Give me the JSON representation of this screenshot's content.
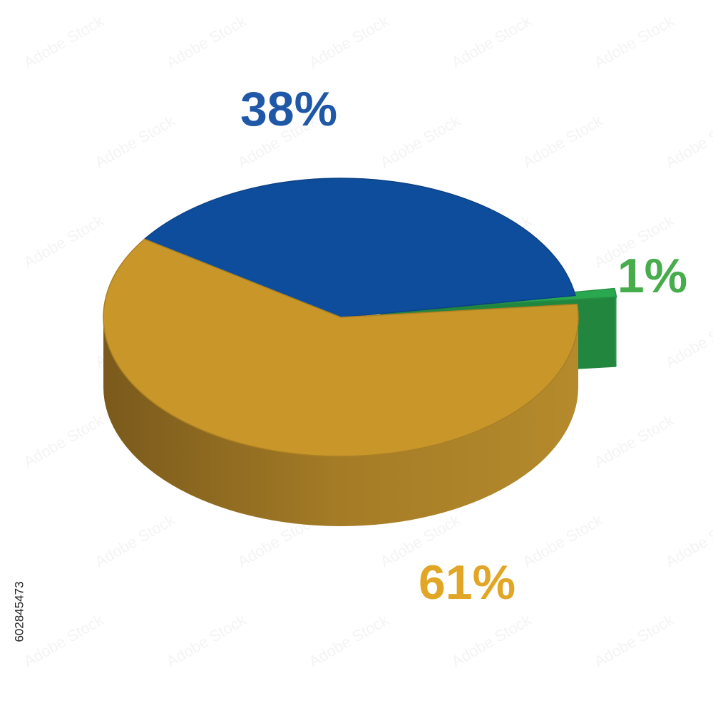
{
  "chart_data": {
    "type": "pie",
    "three_d": true,
    "categories": [
      null,
      null,
      null
    ],
    "values": [
      1,
      38,
      61
    ],
    "value_labels": [
      "1%",
      "38%",
      "61%"
    ],
    "colors": [
      "#2aa84f",
      "#0e4d9c",
      "#c9962a"
    ],
    "label_colors": [
      "#47ad4c",
      "#1f58a6",
      "#e2a627"
    ]
  },
  "stock_id": "602845473",
  "watermark": "Adobe Stock"
}
